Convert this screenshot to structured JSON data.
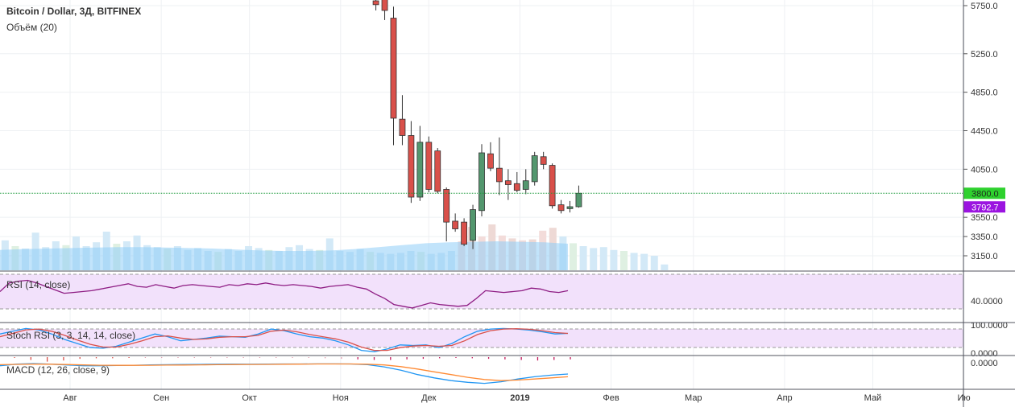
{
  "title": "Bitcoin / Dollar, 3Д, BITFINEX",
  "volume_label": "Объём (20)",
  "colors": {
    "up": "#53976e",
    "down": "#d9504a",
    "grid": "#eef0f3",
    "rsi_line": "#8e1c83",
    "macd_line": "#2196f3",
    "signal_line": "#ff8a33",
    "rsi_band": "#f2e1fb",
    "vol_ma": "#8fcdf8"
  },
  "chart_data": [
    {
      "type": "candlestick",
      "pane": "price",
      "ylim": [
        3000,
        5800
      ],
      "y_ticks": [
        "5750.0",
        "5250.0",
        "4850.0",
        "4450.0",
        "4050.0",
        "3550.0",
        "3350.0",
        "3150.0"
      ],
      "y_tick_values": [
        5750,
        5250,
        4850,
        4450,
        4050,
        3550,
        3350,
        3150
      ],
      "x_ticks": [
        "Авг",
        "Сен",
        "Окт",
        "Ноя",
        "Дек",
        "2019",
        "Фев",
        "Мар",
        "Апр",
        "Май",
        "Ию"
      ],
      "x_tick_dates": [
        "2018-08-01",
        "2018-09-01",
        "2018-10-01",
        "2018-11-01",
        "2018-12-01",
        "2019-01-01",
        "2019-02-01",
        "2019-03-01",
        "2019-04-01",
        "2019-05-01",
        "2019-06-01"
      ],
      "last_price": "3800.0",
      "last_price_value": 3800,
      "alt_price": "3792.7",
      "candles": [
        {
          "date": "2018-11-13",
          "o": 5800,
          "h": 5820,
          "l": 5700,
          "c": 5760
        },
        {
          "date": "2018-11-16",
          "o": 5850,
          "h": 5870,
          "l": 5600,
          "c": 5700
        },
        {
          "date": "2018-11-19",
          "o": 5620,
          "h": 5740,
          "l": 4300,
          "c": 4580
        },
        {
          "date": "2018-11-22",
          "o": 4570,
          "h": 4820,
          "l": 4300,
          "c": 4400
        },
        {
          "date": "2018-11-25",
          "o": 4400,
          "h": 4550,
          "l": 3700,
          "c": 3760
        },
        {
          "date": "2018-11-28",
          "o": 3760,
          "h": 4500,
          "l": 3720,
          "c": 4330
        },
        {
          "date": "2018-12-01",
          "o": 4330,
          "h": 4390,
          "l": 3810,
          "c": 3840
        },
        {
          "date": "2018-12-04",
          "o": 4240,
          "h": 4270,
          "l": 3800,
          "c": 3820
        },
        {
          "date": "2018-12-07",
          "o": 3840,
          "h": 3860,
          "l": 3300,
          "c": 3500
        },
        {
          "date": "2018-12-10",
          "o": 3510,
          "h": 3590,
          "l": 3400,
          "c": 3430
        },
        {
          "date": "2018-12-13",
          "o": 3500,
          "h": 3540,
          "l": 3250,
          "c": 3270
        },
        {
          "date": "2018-12-16",
          "o": 3310,
          "h": 3680,
          "l": 3220,
          "c": 3630
        },
        {
          "date": "2018-12-19",
          "o": 3620,
          "h": 4310,
          "l": 3560,
          "c": 4220
        },
        {
          "date": "2018-12-22",
          "o": 4210,
          "h": 4330,
          "l": 4030,
          "c": 4060
        },
        {
          "date": "2018-12-25",
          "o": 4060,
          "h": 4380,
          "l": 3780,
          "c": 3920
        },
        {
          "date": "2018-12-28",
          "o": 3930,
          "h": 4050,
          "l": 3730,
          "c": 3890
        },
        {
          "date": "2018-12-31",
          "o": 3900,
          "h": 4020,
          "l": 3810,
          "c": 3830
        },
        {
          "date": "2019-01-03",
          "o": 3840,
          "h": 4050,
          "l": 3790,
          "c": 3930
        },
        {
          "date": "2019-01-06",
          "o": 3920,
          "h": 4230,
          "l": 3880,
          "c": 4190
        },
        {
          "date": "2019-01-09",
          "o": 4180,
          "h": 4230,
          "l": 4050,
          "c": 4100
        },
        {
          "date": "2019-01-12",
          "o": 4090,
          "h": 4110,
          "l": 3640,
          "c": 3670
        },
        {
          "date": "2019-01-15",
          "o": 3680,
          "h": 3730,
          "l": 3590,
          "c": 3620
        },
        {
          "date": "2019-01-18",
          "o": 3640,
          "h": 3720,
          "l": 3600,
          "c": 3660
        },
        {
          "date": "2019-01-21",
          "o": 3660,
          "h": 3880,
          "l": 3650,
          "c": 3800
        }
      ]
    },
    {
      "type": "bar",
      "pane": "volume",
      "title": "Объём (20)",
      "bars_up": [
        0.55,
        0.6,
        0.62,
        0.5,
        0.45,
        0.78,
        0.48,
        0.6,
        0.52,
        0.7,
        0.5,
        0.58,
        0.8,
        0.55,
        0.6,
        0.72,
        0.52,
        0.48,
        0.45,
        0.5,
        0.42,
        0.46,
        0.4,
        0.38,
        0.44,
        0.4,
        0.5,
        0.46,
        0.42,
        0.4,
        0.48,
        0.52,
        0.44,
        0.42,
        0.66,
        0.4,
        0.38,
        0.44,
        0.38,
        0.36,
        0.34,
        0.36,
        0.4,
        0.38,
        0.34,
        0.36,
        0.4,
        0.6,
        0.9,
        0.7,
        0.95,
        0.72,
        0.66,
        0.62,
        0.64,
        0.82,
        0.88,
        0.7,
        0.56,
        0.5,
        0.46,
        0.48,
        0.42,
        0.4,
        0.36,
        0.34,
        0.3,
        0.12
      ],
      "ma": [
        0.42,
        0.44,
        0.45,
        0.46,
        0.47,
        0.48,
        0.48,
        0.47,
        0.46,
        0.45,
        0.43,
        0.41,
        0.4,
        0.4,
        0.41,
        0.44,
        0.48,
        0.52,
        0.56,
        0.58,
        0.59,
        0.6,
        0.59,
        0.58,
        0.55
      ]
    },
    {
      "type": "line",
      "pane": "rsi",
      "title": "RSI (14, close)",
      "y_ticks": [
        "40.0000"
      ],
      "y_tick_values": [
        40
      ],
      "ylim": [
        20,
        80
      ],
      "values": [
        50,
        60,
        62,
        63,
        60,
        56,
        52,
        48,
        49,
        50,
        51,
        53,
        55,
        57,
        59,
        56,
        55,
        58,
        56,
        54,
        57,
        58,
        57,
        56,
        55,
        58,
        57,
        59,
        58,
        60,
        58,
        57,
        58,
        57,
        56,
        54,
        56,
        57,
        58,
        55,
        53,
        47,
        42,
        35,
        33,
        31,
        34,
        37,
        35,
        34,
        33,
        34,
        42,
        51,
        50,
        49,
        50,
        51,
        54,
        53,
        50,
        49,
        51
      ]
    },
    {
      "type": "line",
      "pane": "stoch_rsi",
      "title": "Stoch RSI (3, 3, 14, 14, close)",
      "y_ticks": [
        "100.0000",
        "0.0000"
      ],
      "y_tick_values": [
        100,
        0
      ],
      "ylim": [
        0,
        100
      ],
      "series": [
        {
          "values": [
            70,
            80,
            90,
            85,
            70,
            50,
            35,
            20,
            18,
            25,
            40,
            55,
            70,
            60,
            45,
            50,
            55,
            62,
            60,
            58,
            70,
            88,
            82,
            70,
            60,
            55,
            45,
            30,
            10,
            5,
            15,
            30,
            28,
            30,
            20,
            35,
            60,
            80,
            88,
            90,
            88,
            84,
            78,
            70,
            72
          ]
        },
        {
          "values": [
            60,
            72,
            85,
            88,
            80,
            65,
            48,
            32,
            22,
            22,
            32,
            45,
            60,
            63,
            55,
            50,
            52,
            58,
            60,
            60,
            65,
            80,
            84,
            78,
            68,
            60,
            52,
            40,
            22,
            10,
            10,
            20,
            26,
            28,
            25,
            28,
            45,
            68,
            82,
            88,
            89,
            87,
            82,
            75,
            72
          ]
        }
      ]
    },
    {
      "type": "line",
      "pane": "macd",
      "title": "MACD (12, 26, close, 9)",
      "y_ticks": [
        "0.0000"
      ],
      "y_tick_values": [
        0
      ],
      "ylim": [
        -400,
        40
      ],
      "series": [
        {
          "values": [
            -40,
            -10,
            0,
            -10,
            -25,
            -40,
            -40,
            -35,
            -30,
            -25,
            -20,
            -18,
            -15,
            -12,
            -10,
            -12,
            -10,
            -8,
            -8,
            -6,
            -6,
            -8,
            -20,
            -60,
            -120,
            -200,
            -260,
            -310,
            -340,
            -360,
            -330,
            -280,
            -240,
            -210,
            -190
          ]
        },
        {
          "values": [
            -20,
            -15,
            -10,
            -12,
            -18,
            -25,
            -30,
            -32,
            -32,
            -30,
            -28,
            -26,
            -24,
            -20,
            -18,
            -16,
            -14,
            -12,
            -10,
            -8,
            -8,
            -8,
            -12,
            -25,
            -55,
            -100,
            -150,
            -200,
            -250,
            -290,
            -310,
            -300,
            -280,
            -260,
            -240
          ]
        }
      ],
      "histogram": [
        0,
        0.5,
        0.8,
        0.6,
        0.3,
        0.2,
        0.2,
        0.1,
        0,
        0,
        0,
        0,
        0,
        0,
        0,
        0,
        0,
        0,
        0.1,
        0.2,
        0.3,
        0.4,
        0.5,
        0.5,
        0.4,
        0.3,
        0.2,
        0.1,
        0.2,
        0.3,
        0.4,
        0.5,
        0.6,
        0.5,
        0.4
      ]
    }
  ]
}
